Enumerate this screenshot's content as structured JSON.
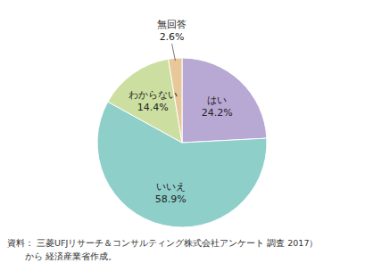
{
  "chart_data": {
    "type": "pie",
    "categories": [
      "はい",
      "いいえ",
      "わからない",
      "無回答"
    ],
    "values": [
      24.2,
      58.9,
      14.4,
      2.6
    ],
    "value_labels": [
      "24.2%",
      "58.9%",
      "14.4%",
      "2.6%"
    ],
    "colors": [
      "#b8a8d4",
      "#8ecfca",
      "#ccdfa0",
      "#e8c898"
    ],
    "data_labels": true,
    "annotations": [
      "資料： 三菱UFJリサーチ＆コンサルティング株式会社アンケート 調査 2017）",
      "　　から 経済産業省作成。"
    ]
  }
}
